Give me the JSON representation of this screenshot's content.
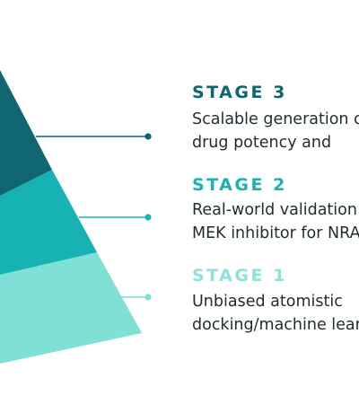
{
  "colors": {
    "stage3": "#0f6670",
    "stage2": "#17b2b3",
    "stage1": "#7fe0d6",
    "title3": "#0f6670",
    "title2": "#19b3b4",
    "title1": "#8be3d9"
  },
  "stages": [
    {
      "title": "STAGE 3",
      "line1": "Scalable generation of data on",
      "line2": "drug potency and"
    },
    {
      "title": "STAGE 2",
      "line1": "Real-world validation with a",
      "line2": "MEK inhibitor for NRAS"
    },
    {
      "title": "STAGE 1",
      "line1": "Unbiased atomistic",
      "line2": "docking/machine learning"
    }
  ]
}
